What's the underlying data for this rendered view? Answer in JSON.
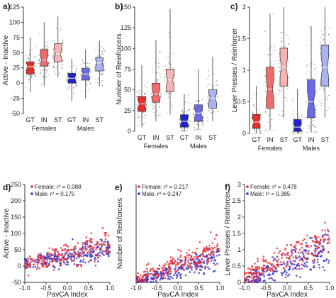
{
  "chart_data": [
    {
      "panel": "a)",
      "type": "box",
      "ylabel": "Active - Inactive",
      "ylim": [
        -50,
        125
      ],
      "yticks": [
        "125",
        "100",
        "75",
        "50",
        "25",
        "0",
        "-25",
        "-50"
      ],
      "categories": [
        "GT",
        "IN",
        "ST",
        "GT",
        "IN",
        "ST"
      ],
      "groups": [
        "Females",
        "Males"
      ],
      "colors": [
        "#ee2b2b",
        "#f06b6b",
        "#f6b3b3",
        "#2222cc",
        "#6a6ae6",
        "#aab2f2"
      ],
      "boxes": [
        {
          "q1": 15,
          "median": 27,
          "q3": 35,
          "lo": -15,
          "hi": 75
        },
        {
          "q1": 28,
          "median": 38,
          "q3": 55,
          "lo": -5,
          "hi": 100
        },
        {
          "q1": 35,
          "median": 48,
          "q3": 65,
          "lo": 10,
          "hi": 110
        },
        {
          "q1": 0,
          "median": 8,
          "q3": 16,
          "lo": -30,
          "hi": 40
        },
        {
          "q1": 5,
          "median": 15,
          "q3": 24,
          "lo": -25,
          "hi": 55
        },
        {
          "q1": 20,
          "median": 33,
          "q3": 42,
          "lo": -5,
          "hi": 70
        }
      ]
    },
    {
      "panel": "b)",
      "type": "box",
      "ylabel": "Number of Reinforcers",
      "ylim": [
        0,
        150
      ],
      "yticks": [
        "150",
        "125",
        "100",
        "75",
        "50",
        "25",
        "0"
      ],
      "categories": [
        "GT",
        "IN",
        "ST",
        "GT",
        "IN",
        "ST"
      ],
      "groups": [
        "Females",
        "Males"
      ],
      "colors": [
        "#ee2b2b",
        "#f06b6b",
        "#f6b3b3",
        "#2222cc",
        "#6a6ae6",
        "#aab2f2"
      ],
      "boxes": [
        {
          "q1": 24,
          "median": 33,
          "q3": 42,
          "lo": 5,
          "hi": 80
        },
        {
          "q1": 35,
          "median": 45,
          "q3": 58,
          "lo": 12,
          "hi": 110
        },
        {
          "q1": 48,
          "median": 62,
          "q3": 75,
          "lo": 20,
          "hi": 148
        },
        {
          "q1": 5,
          "median": 12,
          "q3": 20,
          "lo": 0,
          "hi": 45
        },
        {
          "q1": 12,
          "median": 22,
          "q3": 32,
          "lo": 2,
          "hi": 75
        },
        {
          "q1": 28,
          "median": 40,
          "q3": 50,
          "lo": 12,
          "hi": 90
        }
      ]
    },
    {
      "panel": "c)",
      "type": "box",
      "ylabel": "Lever Presses / Reinforcer",
      "ylim": [
        0,
        2
      ],
      "yticks": [
        "2",
        "1.5",
        "1",
        "0.5",
        "0"
      ],
      "categories": [
        "GT",
        "IN",
        "ST",
        "GT",
        "IN",
        "ST"
      ],
      "groups": [
        "Females",
        "Males"
      ],
      "colors": [
        "#ee2b2b",
        "#f06b6b",
        "#f6b3b3",
        "#2222cc",
        "#6a6ae6",
        "#aab2f2"
      ],
      "boxes": [
        {
          "q1": 0.08,
          "median": 0.18,
          "q3": 0.3,
          "lo": 0.0,
          "hi": 0.75
        },
        {
          "q1": 0.4,
          "median": 0.7,
          "q3": 1.05,
          "lo": 0.05,
          "hi": 1.9
        },
        {
          "q1": 0.75,
          "median": 1.05,
          "q3": 1.35,
          "lo": 0.25,
          "hi": 2.0
        },
        {
          "q1": 0.03,
          "median": 0.1,
          "q3": 0.22,
          "lo": 0.0,
          "hi": 0.7
        },
        {
          "q1": 0.25,
          "median": 0.5,
          "q3": 0.85,
          "lo": 0.02,
          "hi": 1.7
        },
        {
          "q1": 0.75,
          "median": 1.05,
          "q3": 1.4,
          "lo": 0.25,
          "hi": 2.0
        }
      ]
    },
    {
      "panel": "d)",
      "type": "scatter",
      "xlabel": "PavCA Index",
      "ylabel": "Active - Inactive",
      "xlim": [
        -1.0,
        1.0
      ],
      "ylim": [
        -75,
        250
      ],
      "xticks": [
        "-1.0",
        "-0.5",
        "0.0",
        "0.5",
        "1.0"
      ],
      "yticks": [
        "250",
        "200",
        "150",
        "100",
        "50",
        "0",
        "-50"
      ],
      "legend": [
        "Female: r² = 0.088",
        "Male: r² = 0.175"
      ],
      "model": {
        "female": {
          "a": 20,
          "b": 30,
          "sd": 30
        },
        "male": {
          "a": 12,
          "b": 25,
          "sd": 25
        }
      }
    },
    {
      "panel": "e)",
      "type": "scatter",
      "xlabel": "PavCA Index",
      "ylabel": "Number of Reinforcers",
      "xlim": [
        -1.0,
        1.0
      ],
      "ylim": [
        0,
        150
      ],
      "xticks": [
        "-1.0",
        "-0.5",
        "0.0",
        "0.5",
        "1.0"
      ],
      "yticks": [],
      "legend": [
        "Female: r² = 0.217",
        "Male: r² = 0.247"
      ],
      "model": {
        "female": {
          "a": 28,
          "b": 22,
          "sd": 12
        },
        "male": {
          "a": 20,
          "b": 20,
          "sd": 10
        }
      }
    },
    {
      "panel": "f)",
      "type": "scatter",
      "xlabel": "PavCA Index",
      "ylabel": "Lever Presses / Reinforcer",
      "xlim": [
        -1.0,
        1.0
      ],
      "ylim": [
        0,
        3
      ],
      "xticks": [
        "-1.0",
        "-0.5",
        "0.0",
        "0.5",
        "1.0"
      ],
      "yticks": [
        "3",
        "2.5",
        "2",
        "1.5",
        "1",
        "0.5",
        "0"
      ],
      "legend": [
        "Female: r² = 0.478",
        "Male: r² = 0.385"
      ],
      "model": {
        "female": {
          "a": 0.75,
          "b": 0.6,
          "sd": 0.3
        },
        "male": {
          "a": 0.55,
          "b": 0.55,
          "sd": 0.3
        }
      }
    }
  ]
}
